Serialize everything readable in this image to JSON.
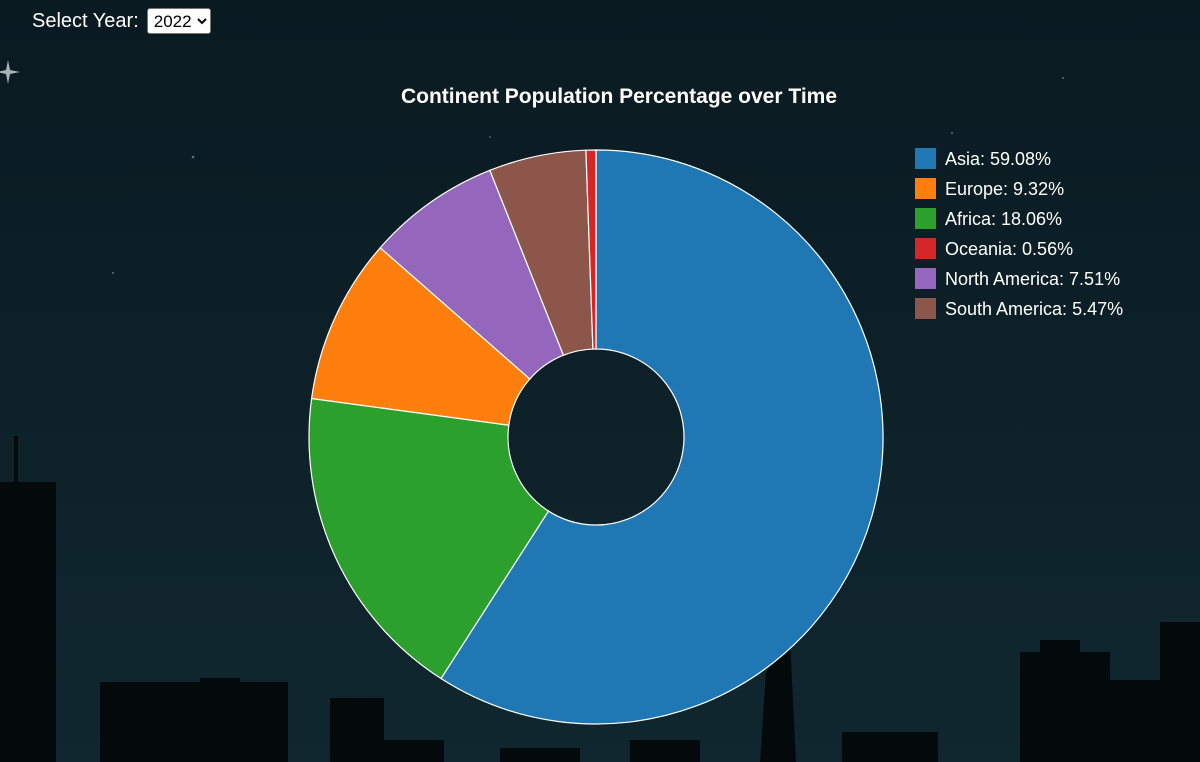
{
  "controls": {
    "year_label": "Select Year:",
    "year_value": "2022",
    "year_options": [
      "2022"
    ]
  },
  "chart_data": {
    "type": "pie",
    "variant": "donut",
    "title": "Continent Population Percentage over Time",
    "legend_position": "top-right",
    "slices": [
      {
        "label": "Asia",
        "value": 59.08,
        "color": "#1f77b4"
      },
      {
        "label": "Africa",
        "value": 18.06,
        "color": "#2ca02c"
      },
      {
        "label": "Europe",
        "value": 9.32,
        "color": "#ff7f0e"
      },
      {
        "label": "North America",
        "value": 7.51,
        "color": "#9467bd"
      },
      {
        "label": "South America",
        "value": 5.47,
        "color": "#8c564b"
      },
      {
        "label": "Oceania",
        "value": 0.56,
        "color": "#d62728"
      }
    ],
    "legend": [
      {
        "text": "Asia: 59.08%",
        "color": "#1f77b4"
      },
      {
        "text": "Europe: 9.32%",
        "color": "#ff7f0e"
      },
      {
        "text": "Africa: 18.06%",
        "color": "#2ca02c"
      },
      {
        "text": "Oceania: 0.56%",
        "color": "#d62728"
      },
      {
        "text": "North America: 7.51%",
        "color": "#9467bd"
      },
      {
        "text": "South America: 5.47%",
        "color": "#8c564b"
      }
    ]
  },
  "colors": {
    "background": "#0b1d25",
    "skyline": "#050e13",
    "slice_stroke": "#ffffff"
  }
}
